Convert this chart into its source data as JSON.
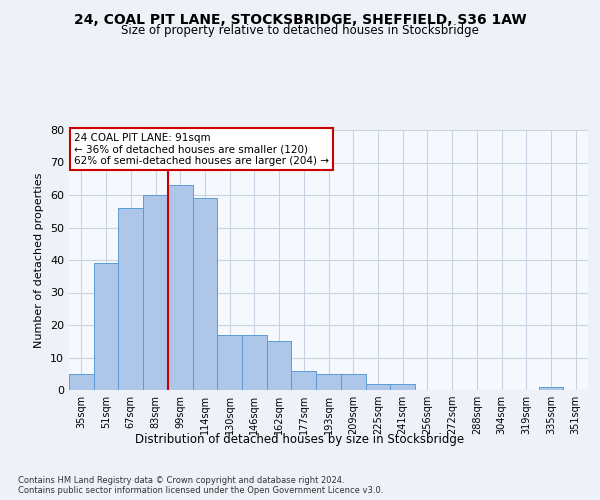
{
  "title_line1": "24, COAL PIT LANE, STOCKSBRIDGE, SHEFFIELD, S36 1AW",
  "title_line2": "Size of property relative to detached houses in Stocksbridge",
  "xlabel": "Distribution of detached houses by size in Stocksbridge",
  "ylabel": "Number of detached properties",
  "categories": [
    "35sqm",
    "51sqm",
    "67sqm",
    "83sqm",
    "99sqm",
    "114sqm",
    "130sqm",
    "146sqm",
    "162sqm",
    "177sqm",
    "193sqm",
    "209sqm",
    "225sqm",
    "241sqm",
    "256sqm",
    "272sqm",
    "288sqm",
    "304sqm",
    "319sqm",
    "335sqm",
    "351sqm"
  ],
  "values": [
    5,
    39,
    56,
    60,
    63,
    59,
    17,
    17,
    15,
    6,
    5,
    5,
    2,
    2,
    0,
    0,
    0,
    0,
    0,
    1,
    0
  ],
  "bar_color": "#aec6e8",
  "bar_edge_color": "#5b9bd5",
  "vline_x_index": 3.5,
  "vline_color": "#cc0000",
  "annotation_text": "24 COAL PIT LANE: 91sqm\n← 36% of detached houses are smaller (120)\n62% of semi-detached houses are larger (204) →",
  "annotation_box_color": "#ffffff",
  "annotation_box_edge": "#cc0000",
  "ylim": [
    0,
    80
  ],
  "yticks": [
    0,
    10,
    20,
    30,
    40,
    50,
    60,
    70,
    80
  ],
  "footer": "Contains HM Land Registry data © Crown copyright and database right 2024.\nContains public sector information licensed under the Open Government Licence v3.0.",
  "bg_color": "#eef2f8",
  "plot_bg_color": "#f5f8fd",
  "grid_color": "#c8d4e4"
}
